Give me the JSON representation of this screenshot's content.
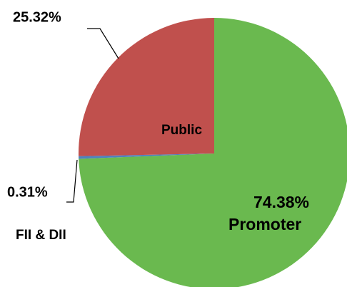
{
  "chart_data": {
    "type": "pie",
    "categories": [
      "Promoter",
      "FII & DII",
      "Public"
    ],
    "values": [
      74.38,
      0.31,
      25.32
    ],
    "value_labels": [
      "74.38%",
      "0.31%",
      "25.32%"
    ],
    "colors": [
      "#6ab94f",
      "#4f81bd",
      "#c0504d"
    ]
  }
}
